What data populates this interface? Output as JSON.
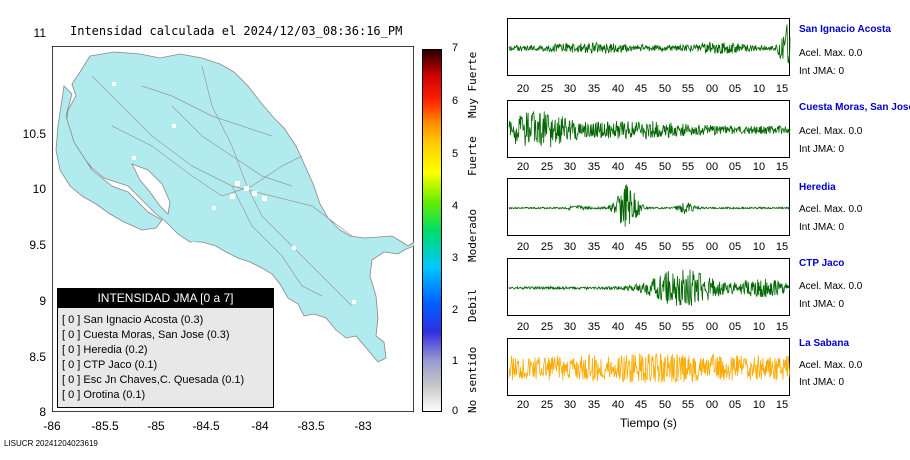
{
  "map": {
    "title": "Intensidad calculada el 2024/12/03_08:36:16_PM",
    "y_ticks": [
      "11",
      "10.5",
      "10",
      "9.5",
      "9",
      "8.5",
      "8"
    ],
    "x_ticks": [
      "-86",
      "-85.5",
      "-85",
      "-84.5",
      "-84",
      "-83.5",
      "-83"
    ],
    "land_color": "#b1ebee",
    "legend": {
      "header": "INTENSIDAD JMA [0 a 7]",
      "rows": [
        "[ 0 ]  San Ignacio Acosta (0.3)",
        "[ 0 ]  Cuesta Moras, San Jose (0.3)",
        "[ 0 ]  Heredia (0.2)",
        "[ 0 ]  CTP Jaco (0.1)",
        "[ 0 ]  Esc Jn Chaves,C. Quesada (0.1)",
        "[ 0 ]  Orotina (0.1)"
      ]
    }
  },
  "colorbar": {
    "ticks": [
      "7",
      "6",
      "5",
      "4",
      "3",
      "2",
      "1",
      "0"
    ],
    "labels": [
      "Muy Fuerte",
      "Fuerte",
      "Moderado",
      "Debil",
      "No sentido"
    ]
  },
  "traces": {
    "time_ticks": [
      "20",
      "25",
      "30",
      "35",
      "40",
      "45",
      "50",
      "55",
      "00",
      "05",
      "10",
      "15"
    ],
    "xlabel": "Tiempo (s)",
    "stations": [
      {
        "name": "San Ignacio Acosta",
        "acel": "Acel. Max. 0.0",
        "int": "Int JMA: 0",
        "color": "#006600"
      },
      {
        "name": "Cuesta Moras, San Jose",
        "acel": "Acel. Max. 0.0",
        "int": "Int JMA: 0",
        "color": "#006600"
      },
      {
        "name": "Heredia",
        "acel": "Acel. Max. 0.0",
        "int": "Int JMA: 0",
        "color": "#006600"
      },
      {
        "name": "CTP Jaco",
        "acel": "Acel. Max. 0.0",
        "int": "Int JMA: 0",
        "color": "#006600"
      },
      {
        "name": "La Sabana",
        "acel": "Acel. Max. 0.0",
        "int": "Int JMA: 0",
        "color": "#ffaa00"
      }
    ]
  },
  "footer": {
    "id": "LISUCR 20241204023619"
  }
}
